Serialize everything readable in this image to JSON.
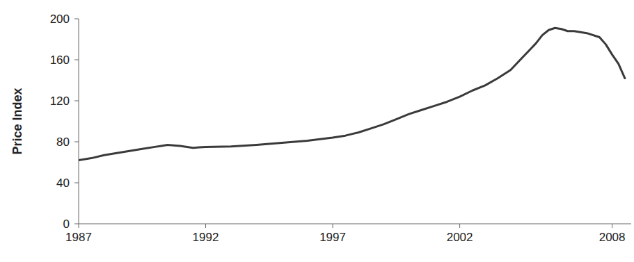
{
  "chart_data": {
    "type": "line",
    "y_label": "Price Index",
    "x": [
      1987.0,
      1987.5,
      1988.0,
      1988.5,
      1989.0,
      1989.5,
      1990.0,
      1990.25,
      1990.5,
      1991.0,
      1991.5,
      1991.75,
      1992.0,
      1993.0,
      1994.0,
      1994.5,
      1995.0,
      1996.0,
      1997.0,
      1997.5,
      1998.0,
      1998.5,
      1999.0,
      1999.5,
      2000.0,
      2000.5,
      2001.0,
      2001.5,
      2002.0,
      2002.5,
      2003.0,
      2003.5,
      2004.0,
      2004.5,
      2005.0,
      2005.25,
      2005.5,
      2005.75,
      2006.0,
      2006.25,
      2006.5,
      2007.0,
      2007.5,
      2007.75,
      2008.0,
      2008.25,
      2008.5
    ],
    "values": [
      62,
      64,
      67,
      69,
      71,
      73,
      75,
      76,
      77,
      76,
      74,
      74.5,
      75,
      75.5,
      77,
      78,
      79,
      81,
      84,
      86,
      89,
      93,
      97,
      102,
      107,
      111,
      115,
      119,
      124,
      130,
      135,
      142,
      150,
      163,
      176,
      184,
      189,
      191,
      190,
      188,
      188,
      186,
      182,
      175,
      165,
      156,
      142
    ],
    "color": "#3a3a3a",
    "xlim": [
      1987,
      2008.75
    ],
    "xticks": [
      1987,
      1992,
      1997,
      2002,
      2008
    ],
    "ylim": [
      0,
      200
    ],
    "yticks": [
      0,
      40,
      80,
      120,
      160,
      200
    ],
    "grid": false
  }
}
